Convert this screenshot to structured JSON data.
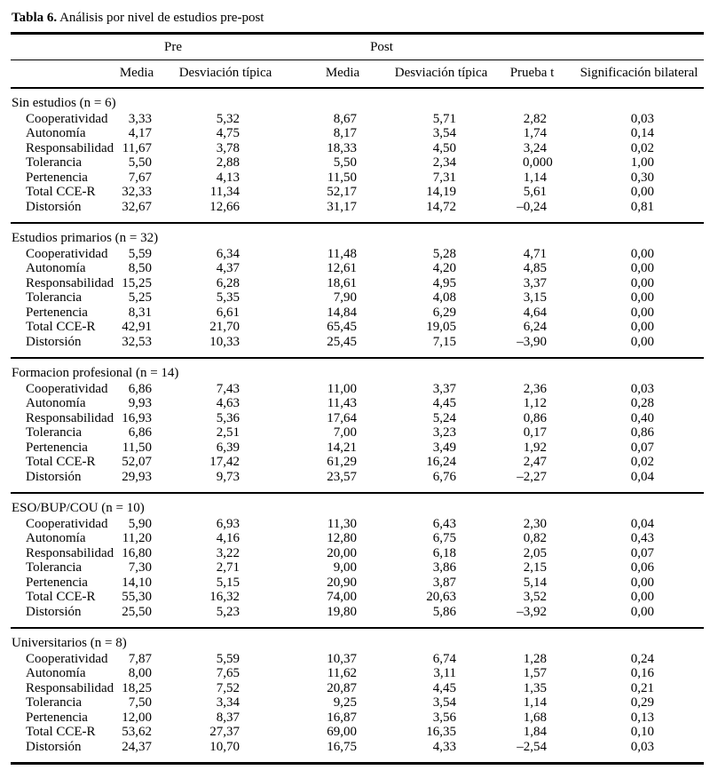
{
  "title": {
    "bold": "Tabla 6.",
    "caption": " Análisis por nivel de estudios pre-post"
  },
  "table": {
    "group_headers": {
      "pre": "Pre",
      "post": "Post"
    },
    "columns": [
      "Media",
      "Desviación típica",
      "Media",
      "Desviación típica",
      "Prueba t",
      "Significación bilateral"
    ],
    "sections": [
      {
        "header": "Sin estudios (n = 6)",
        "rows": [
          {
            "label": "Cooperatividad",
            "values": [
              "3,33",
              "5,32",
              "8,67",
              "5,71",
              "2,82",
              "0,03"
            ]
          },
          {
            "label": "Autonomía",
            "values": [
              "4,17",
              "4,75",
              "8,17",
              "3,54",
              "1,74",
              "0,14"
            ]
          },
          {
            "label": "Responsabilidad",
            "values": [
              "11,67",
              "3,78",
              "18,33",
              "4,50",
              "3,24",
              "0,02"
            ]
          },
          {
            "label": "Tolerancia",
            "values": [
              "5,50",
              "2,88",
              "5,50",
              "2,34",
              "0,000",
              "1,00"
            ]
          },
          {
            "label": "Pertenencia",
            "values": [
              "7,67",
              "4,13",
              "11,50",
              "7,31",
              "1,14",
              "0,30"
            ]
          },
          {
            "label": "Total CCE-R",
            "values": [
              "32,33",
              "11,34",
              "52,17",
              "14,19",
              "5,61",
              "0,00"
            ]
          },
          {
            "label": "Distorsión",
            "values": [
              "32,67",
              "12,66",
              "31,17",
              "14,72",
              "–0,24",
              "0,81"
            ]
          }
        ]
      },
      {
        "header": "Estudios primarios (n = 32)",
        "rows": [
          {
            "label": "Cooperatividad",
            "values": [
              "5,59",
              "6,34",
              "11,48",
              "5,28",
              "4,71",
              "0,00"
            ]
          },
          {
            "label": "Autonomía",
            "values": [
              "8,50",
              "4,37",
              "12,61",
              "4,20",
              "4,85",
              "0,00"
            ]
          },
          {
            "label": "Responsabilidad",
            "values": [
              "15,25",
              "6,28",
              "18,61",
              "4,95",
              "3,37",
              "0,00"
            ]
          },
          {
            "label": "Tolerancia",
            "values": [
              "5,25",
              "5,35",
              "7,90",
              "4,08",
              "3,15",
              "0,00"
            ]
          },
          {
            "label": "Pertenencia",
            "values": [
              "8,31",
              "6,61",
              "14,84",
              "6,29",
              "4,64",
              "0,00"
            ]
          },
          {
            "label": "Total CCE-R",
            "values": [
              "42,91",
              "21,70",
              "65,45",
              "19,05",
              "6,24",
              "0,00"
            ]
          },
          {
            "label": "Distorsión",
            "values": [
              "32,53",
              "10,33",
              "25,45",
              "7,15",
              "–3,90",
              "0,00"
            ]
          }
        ]
      },
      {
        "header": "Formacion profesional (n = 14)",
        "rows": [
          {
            "label": "Cooperatividad",
            "values": [
              "6,86",
              "7,43",
              "11,00",
              "3,37",
              "2,36",
              "0,03"
            ]
          },
          {
            "label": "Autonomía",
            "values": [
              "9,93",
              "4,63",
              "11,43",
              "4,45",
              "1,12",
              "0,28"
            ]
          },
          {
            "label": "Responsabilidad",
            "values": [
              "16,93",
              "5,36",
              "17,64",
              "5,24",
              "0,86",
              "0,40"
            ]
          },
          {
            "label": "Tolerancia",
            "values": [
              "6,86",
              "2,51",
              "7,00",
              "3,23",
              "0,17",
              "0,86"
            ]
          },
          {
            "label": "Pertenencia",
            "values": [
              "11,50",
              "6,39",
              "14,21",
              "3,49",
              "1,92",
              "0,07"
            ]
          },
          {
            "label": "Total CCE-R",
            "values": [
              "52,07",
              "17,42",
              "61,29",
              "16,24",
              "2,47",
              "0,02"
            ]
          },
          {
            "label": "Distorsión",
            "values": [
              "29,93",
              "9,73",
              "23,57",
              "6,76",
              "–2,27",
              "0,04"
            ]
          }
        ]
      },
      {
        "header": "ESO/BUP/COU (n = 10)",
        "rows": [
          {
            "label": "Cooperatividad",
            "values": [
              "5,90",
              "6,93",
              "11,30",
              "6,43",
              "2,30",
              "0,04"
            ]
          },
          {
            "label": "Autonomía",
            "values": [
              "11,20",
              "4,16",
              "12,80",
              "6,75",
              "0,82",
              "0,43"
            ]
          },
          {
            "label": "Responsabilidad",
            "values": [
              "16,80",
              "3,22",
              "20,00",
              "6,18",
              "2,05",
              "0,07"
            ]
          },
          {
            "label": "Tolerancia",
            "values": [
              "7,30",
              "2,71",
              "9,00",
              "3,86",
              "2,15",
              "0,06"
            ]
          },
          {
            "label": "Pertenencia",
            "values": [
              "14,10",
              "5,15",
              "20,90",
              "3,87",
              "5,14",
              "0,00"
            ]
          },
          {
            "label": "Total CCE-R",
            "values": [
              "55,30",
              "16,32",
              "74,00",
              "20,63",
              "3,52",
              "0,00"
            ]
          },
          {
            "label": "Distorsión",
            "values": [
              "25,50",
              "5,23",
              "19,80",
              "5,86",
              "–3,92",
              "0,00"
            ]
          }
        ]
      },
      {
        "header": "Universitarios (n = 8)",
        "rows": [
          {
            "label": "Cooperatividad",
            "values": [
              "7,87",
              "5,59",
              "10,37",
              "6,74",
              "1,28",
              "0,24"
            ]
          },
          {
            "label": "Autonomía",
            "values": [
              "8,00",
              "7,65",
              "11,62",
              "3,11",
              "1,57",
              "0,16"
            ]
          },
          {
            "label": "Responsabilidad",
            "values": [
              "18,25",
              "7,52",
              "20,87",
              "4,45",
              "1,35",
              "0,21"
            ]
          },
          {
            "label": "Tolerancia",
            "values": [
              "7,50",
              "3,34",
              "9,25",
              "3,54",
              "1,14",
              "0,29"
            ]
          },
          {
            "label": "Pertenencia",
            "values": [
              "12,00",
              "8,37",
              "16,87",
              "3,56",
              "1,68",
              "0,13"
            ]
          },
          {
            "label": "Total CCE-R",
            "values": [
              "53,62",
              "27,37",
              "69,00",
              "16,35",
              "1,84",
              "0,10"
            ]
          },
          {
            "label": "Distorsión",
            "values": [
              "24,37",
              "10,70",
              "16,75",
              "4,33",
              "–2,54",
              "0,03"
            ]
          }
        ]
      }
    ]
  }
}
